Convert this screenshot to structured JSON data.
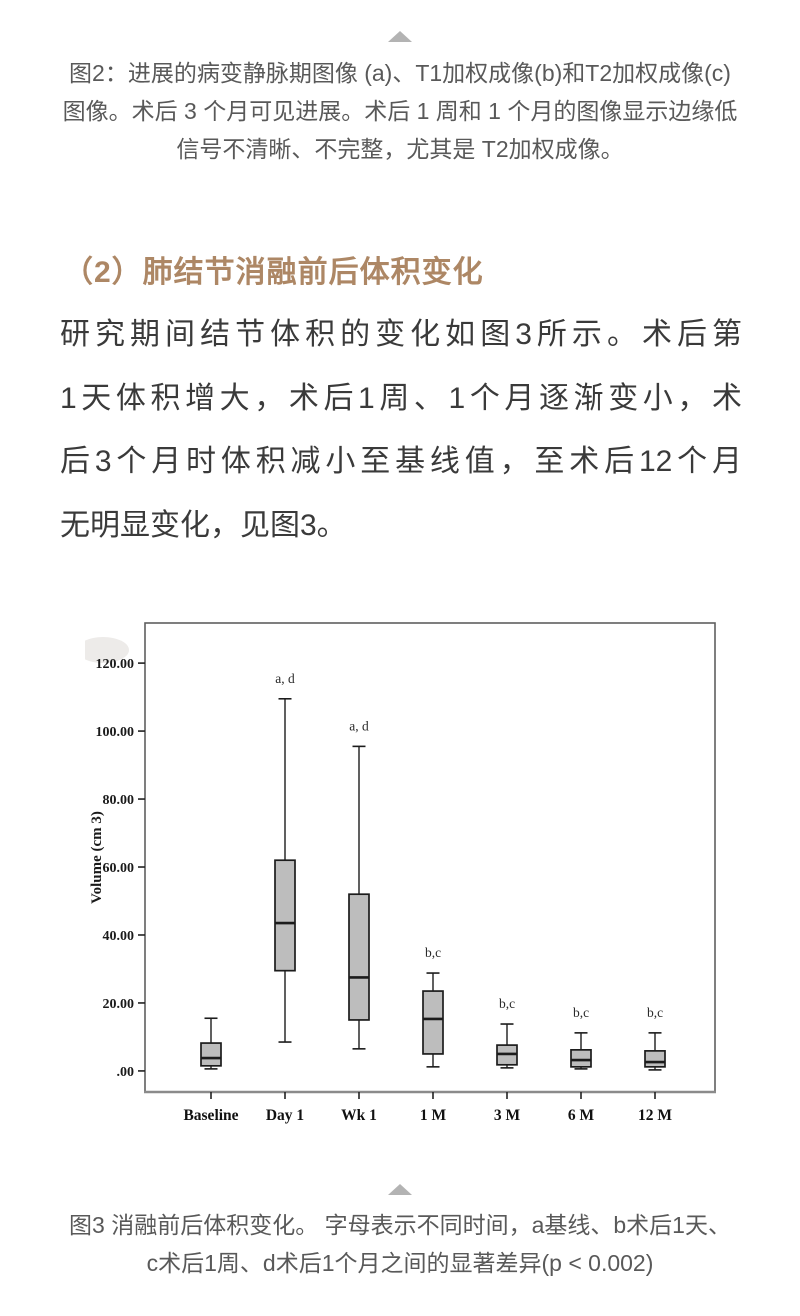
{
  "page": {
    "figure2_caption": {
      "lines": [
        "图2：进展的病变静脉期图像 (a)、T1加权成像(b)和T2加权成像(c)",
        "图像。术后 3 个月可见进展。术后 1 周和 1 个月的图像显示边缘低",
        "信号不清晰、不完整，尤其是 T2加权成像。"
      ]
    },
    "section_heading": "（2）肺结节消融前后体积变化",
    "paragraph": {
      "lines": [
        "研究期间结节体积的变化如图3所示。术后第",
        "1天体积增大，术后1周、1个月逐渐变小，术",
        "后3个月时体积减小至基线值，至术后12个月",
        "无明显变化，见图3。"
      ]
    },
    "figure3_caption": {
      "lines": [
        "图3 消融前后体积变化。 字母表示不同时间，a基线、b术后1天、",
        "c术后1周、d术后1个月之间的显著差异(p < 0.002)"
      ]
    }
  },
  "colors": {
    "heading_text": "#ad8765",
    "body_text": "#3a3a3a",
    "caption_text": "#595959",
    "triangle_marker": "#b3b3b3"
  },
  "chart_data": {
    "type": "box",
    "title": "",
    "xlabel": "",
    "ylabel": "Volume (cm 3)",
    "grid": false,
    "legend": "none",
    "ylim": [
      -6.2,
      131.8
    ],
    "yticks": [
      0,
      20,
      40,
      60,
      80,
      100,
      120
    ],
    "ytick_labels": [
      ".00",
      "20.00",
      "40.00",
      "60.00",
      "80.00",
      "100.00",
      "120.00"
    ],
    "categories": [
      "Baseline",
      "Day 1",
      "Wk 1",
      "1 M",
      "3 M",
      "6 M",
      "12 M"
    ],
    "series": [
      {
        "category": "Baseline",
        "whisker_low": 0.6,
        "q1": 1.5,
        "median": 3.8,
        "q3": 8.2,
        "whisker_high": 15.5,
        "annotation": ""
      },
      {
        "category": "Day 1",
        "whisker_low": 8.5,
        "q1": 29.5,
        "median": 43.5,
        "q3": 62.0,
        "whisker_high": 109.5,
        "annotation": "a, d"
      },
      {
        "category": "Wk 1",
        "whisker_low": 6.5,
        "q1": 15.0,
        "median": 27.5,
        "q3": 52.0,
        "whisker_high": 95.5,
        "annotation": "a, d"
      },
      {
        "category": "1 M",
        "whisker_low": 1.2,
        "q1": 5.0,
        "median": 15.3,
        "q3": 23.5,
        "whisker_high": 28.8,
        "annotation": "b,c"
      },
      {
        "category": "3 M",
        "whisker_low": 0.9,
        "q1": 1.8,
        "median": 5.0,
        "q3": 7.6,
        "whisker_high": 13.8,
        "annotation": "b,c"
      },
      {
        "category": "6 M",
        "whisker_low": 0.6,
        "q1": 1.2,
        "median": 3.2,
        "q3": 6.2,
        "whisker_high": 11.2,
        "annotation": "b,c"
      },
      {
        "category": "12 M",
        "whisker_low": 0.3,
        "q1": 1.2,
        "median": 2.6,
        "q3": 5.9,
        "whisker_high": 11.2,
        "annotation": "b,c"
      }
    ],
    "box_fill": "#bdbdbd",
    "box_stroke": "#1c1c1c",
    "plot_border_color": "#5f5f5f",
    "axis_line_color": "#8b8b8b"
  }
}
